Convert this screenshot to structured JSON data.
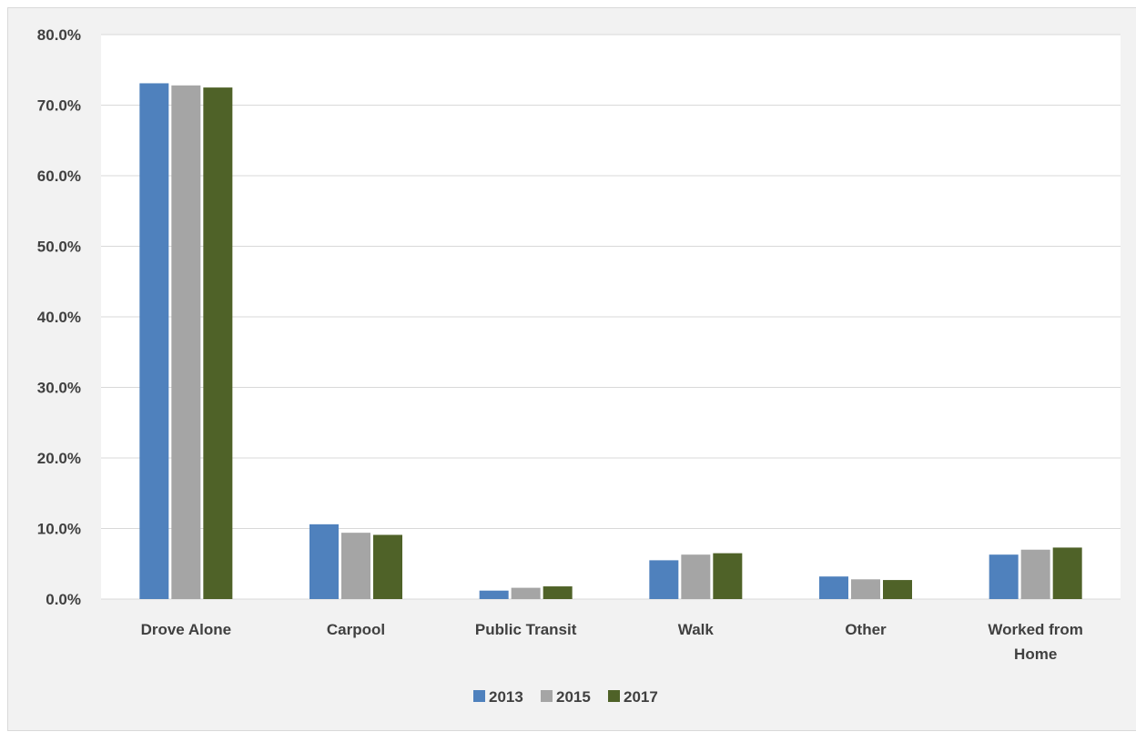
{
  "chart_data": {
    "type": "bar",
    "title": "",
    "xlabel": "",
    "ylabel": "",
    "categories": [
      [
        "Drove Alone"
      ],
      [
        "Carpool"
      ],
      [
        "Public Transit"
      ],
      [
        "Walk"
      ],
      [
        "Other"
      ],
      [
        "Worked from",
        "Home"
      ]
    ],
    "series": [
      {
        "name": "2013",
        "color": "#4f81bd",
        "values": [
          73.1,
          10.6,
          1.2,
          5.5,
          3.2,
          6.3
        ]
      },
      {
        "name": "2015",
        "color": "#a5a5a5",
        "values": [
          72.8,
          9.4,
          1.6,
          6.3,
          2.8,
          7.0
        ]
      },
      {
        "name": "2017",
        "color": "#4f6228",
        "values": [
          72.5,
          9.1,
          1.8,
          6.5,
          2.7,
          7.3
        ]
      }
    ],
    "ylim": [
      0,
      80
    ],
    "yticks": [
      "0.0%",
      "10.0%",
      "20.0%",
      "30.0%",
      "40.0%",
      "50.0%",
      "60.0%",
      "70.0%",
      "80.0%"
    ],
    "grid": true,
    "legend_position": "bottom",
    "colors": {
      "background": "#f2f2f2",
      "plot_background": "#ffffff",
      "gridline": "#d9d9d9",
      "axis_text": "#404040"
    }
  }
}
